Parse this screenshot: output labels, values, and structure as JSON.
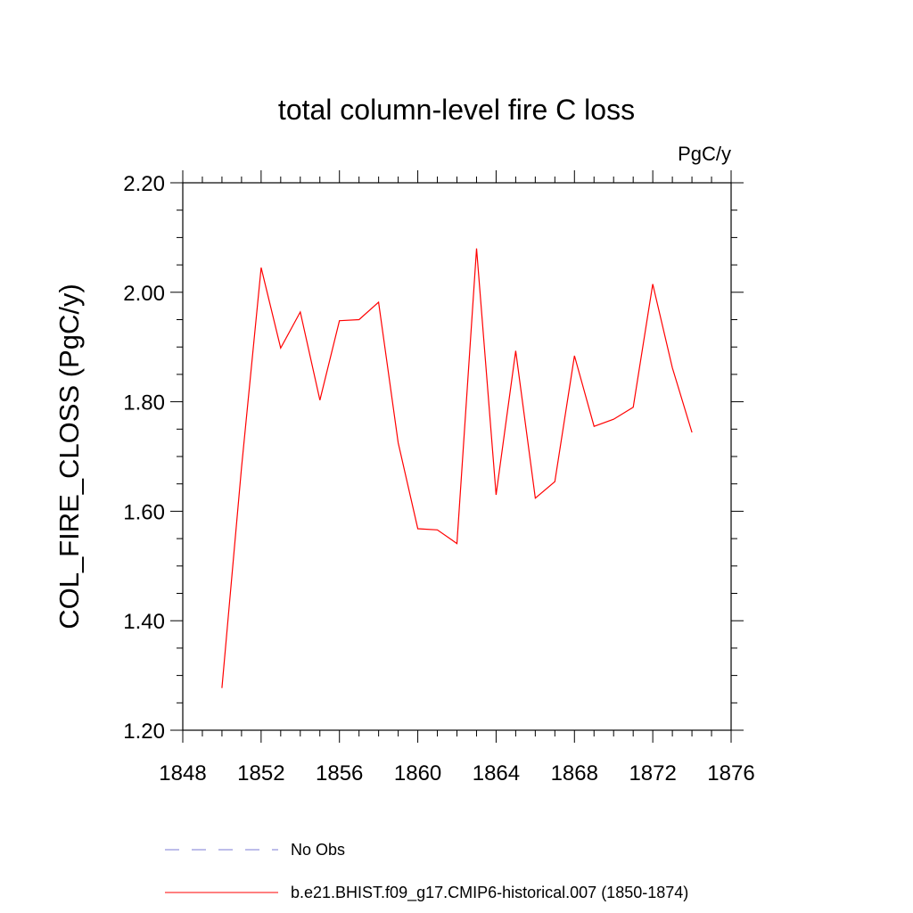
{
  "chart_data": {
    "type": "line",
    "title": "total column-level fire C loss",
    "units_label": "PgC/y",
    "ylabel": "COL_FIRE_CLOSS  (PgC/y)",
    "xlabel": "",
    "xlim": [
      1848,
      1876
    ],
    "ylim": [
      1.2,
      2.2
    ],
    "x_ticks": [
      1848,
      1852,
      1856,
      1860,
      1864,
      1868,
      1872,
      1876
    ],
    "x_tick_labels": [
      "1848",
      "1852",
      "1856",
      "1860",
      "1864",
      "1868",
      "1872",
      "1876"
    ],
    "y_ticks": [
      1.2,
      1.4,
      1.6,
      1.8,
      2.0,
      2.2
    ],
    "y_tick_labels": [
      "1.20",
      "1.40",
      "1.60",
      "1.80",
      "2.00",
      "2.20"
    ],
    "grid": false,
    "legend_placement": "bottom",
    "series": [
      {
        "name": "b.e21.BHIST.f09_g17.CMIP6-historical.007 (1850-1874)",
        "color": "#ff0000",
        "style": "solid",
        "x": [
          1850,
          1851,
          1852,
          1853,
          1854,
          1855,
          1856,
          1857,
          1858,
          1859,
          1860,
          1861,
          1862,
          1863,
          1864,
          1865,
          1866,
          1867,
          1868,
          1869,
          1870,
          1871,
          1872,
          1873,
          1874
        ],
        "values": [
          1.277,
          1.68,
          2.045,
          1.898,
          1.964,
          1.803,
          1.948,
          1.95,
          1.982,
          1.725,
          1.568,
          1.566,
          1.541,
          2.08,
          1.63,
          1.893,
          1.624,
          1.654,
          1.884,
          1.755,
          1.768,
          1.79,
          2.015,
          1.862,
          1.744
        ]
      }
    ],
    "legend": [
      {
        "label": "No Obs",
        "color": "#7b7bd6",
        "style": "dashed"
      },
      {
        "label": "b.e21.BHIST.f09_g17.CMIP6-historical.007 (1850-1874)",
        "color": "#ff0000",
        "style": "solid"
      }
    ]
  }
}
